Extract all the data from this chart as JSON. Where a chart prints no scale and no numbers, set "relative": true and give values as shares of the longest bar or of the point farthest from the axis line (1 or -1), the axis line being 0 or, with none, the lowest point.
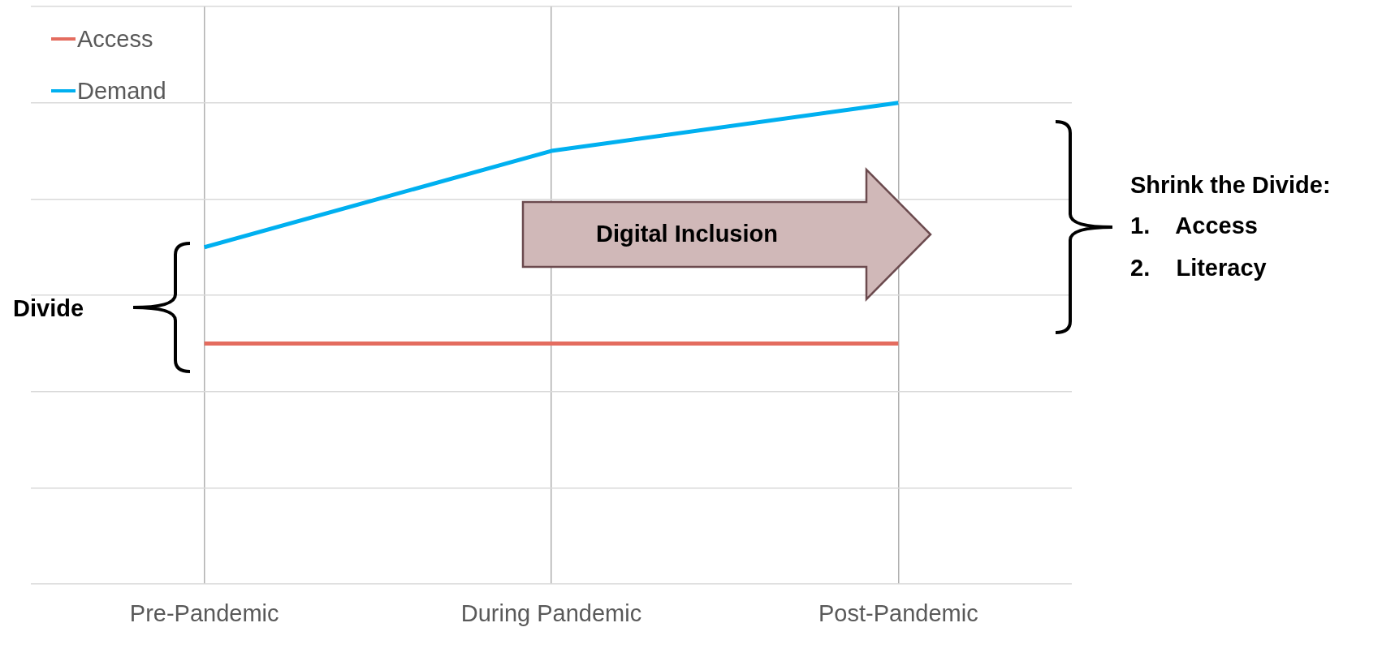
{
  "chart_data": {
    "type": "line",
    "relative": true,
    "categories": [
      "Pre-Pandemic",
      "During Pandemic",
      "Post-Pandemic"
    ],
    "series": [
      {
        "name": "Access",
        "color": "#e46c5f",
        "values": [
          0.5,
          0.5,
          0.5
        ]
      },
      {
        "name": "Demand",
        "color": "#00b0f0",
        "values": [
          0.7,
          0.9,
          1.0
        ]
      }
    ],
    "annotations": [
      "Divide",
      "Digital Inclusion",
      "Shrink the Divide:",
      "1.    Access",
      "2.    Literacy"
    ],
    "grid": true,
    "legend": "top left",
    "marker": "none",
    "line_style": "solid"
  }
}
